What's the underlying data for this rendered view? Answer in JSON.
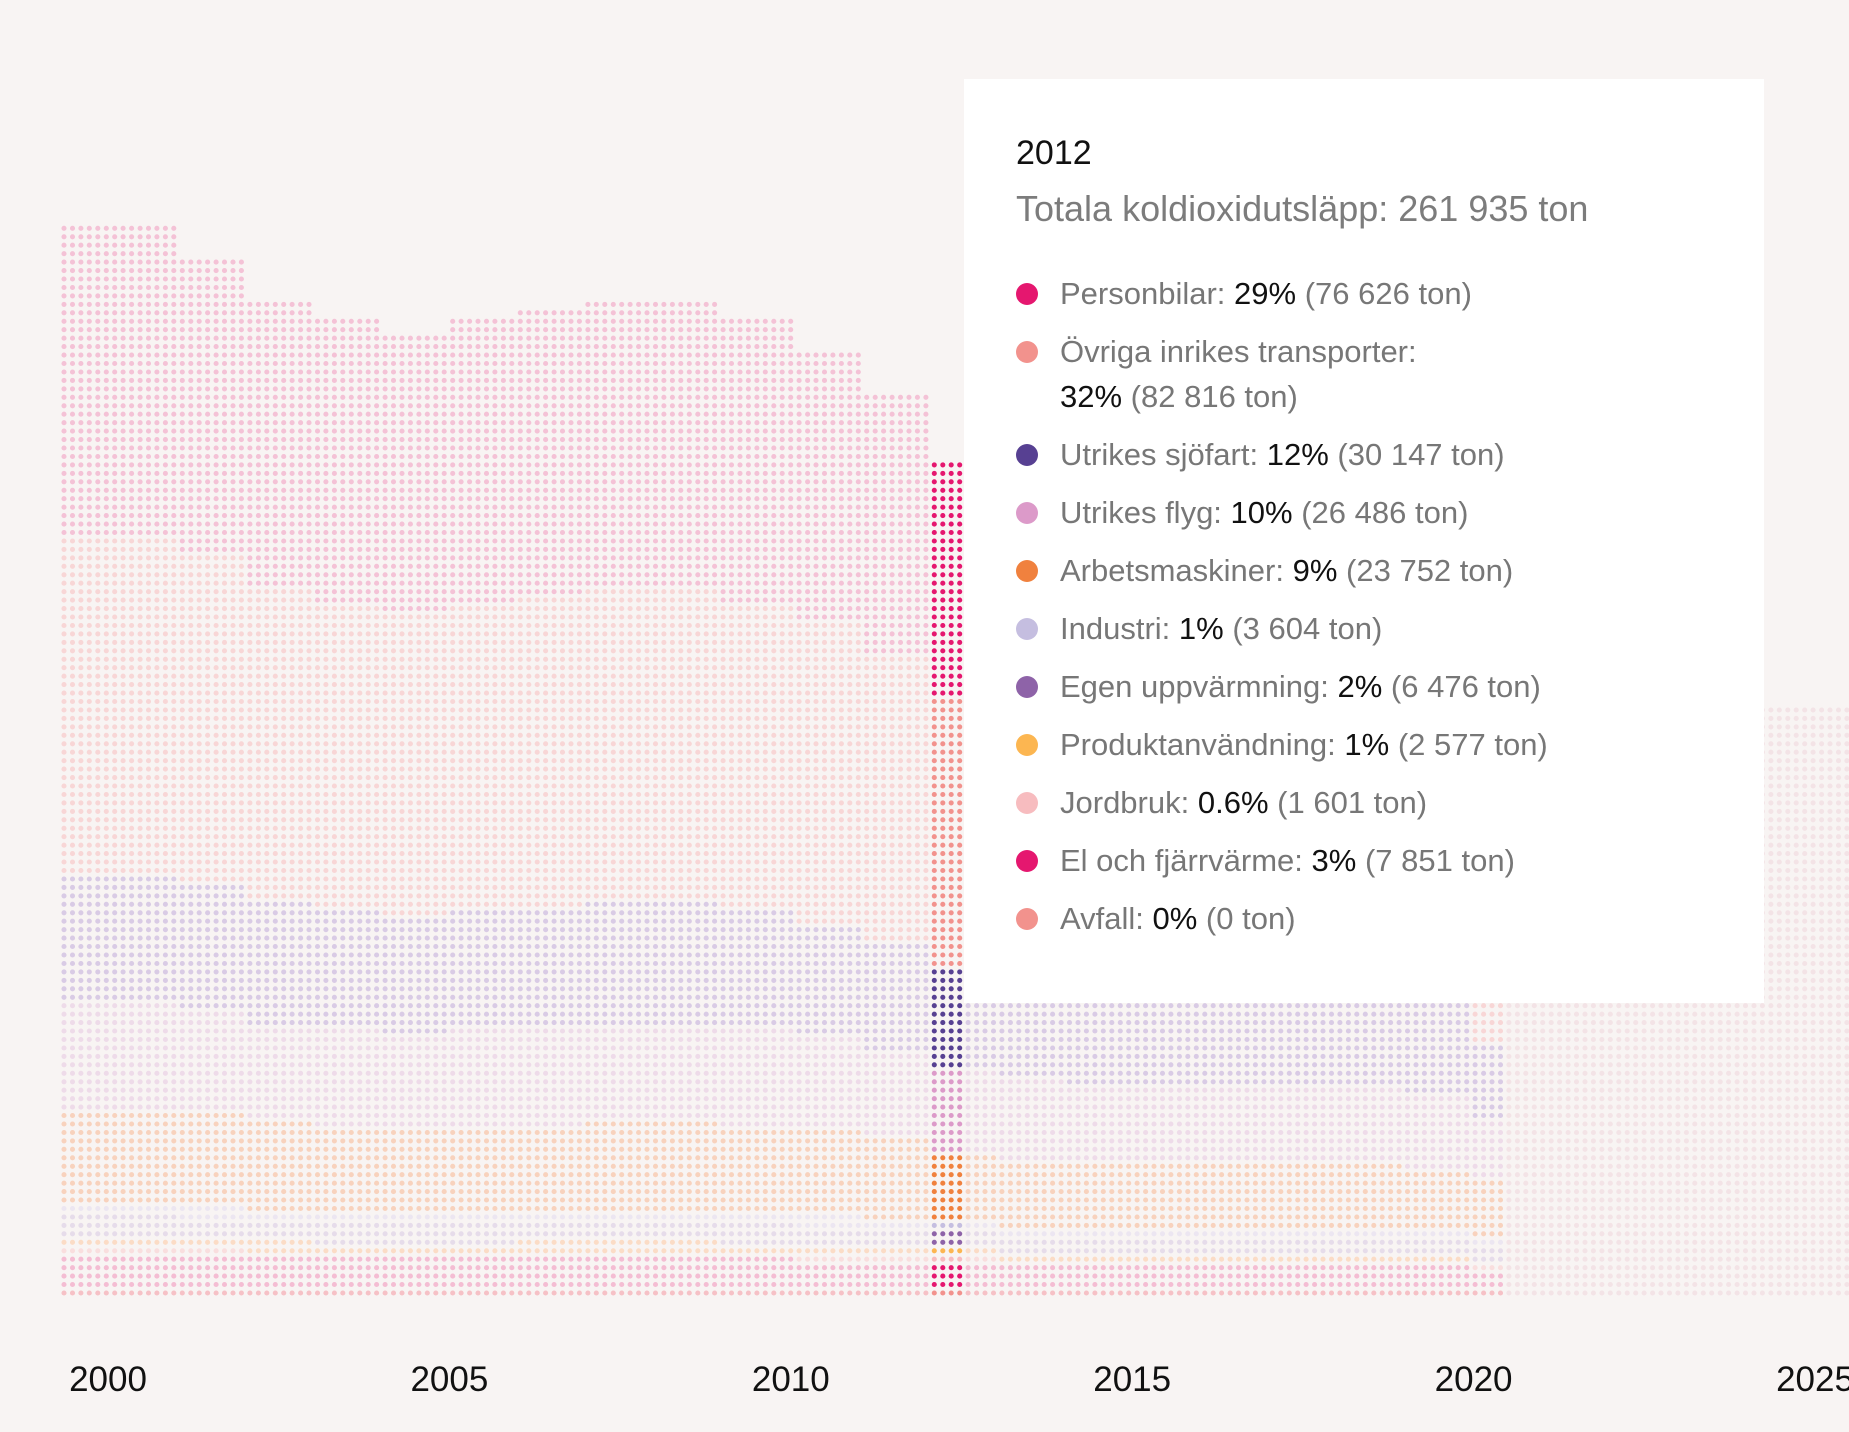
{
  "chart_data": {
    "type": "area",
    "style": "dot-matrix stacked area",
    "x_ticks": [
      "2000",
      "2005",
      "2010",
      "2015",
      "2020",
      "2025"
    ],
    "x_range": [
      2000,
      2025
    ],
    "years": [
      2000,
      2001,
      2002,
      2003,
      2004,
      2005,
      2006,
      2007,
      2008,
      2009,
      2010,
      2011,
      2012,
      2013,
      2014,
      2015,
      2016,
      2017,
      2018,
      2019,
      2020
    ],
    "highlight_year": 2012,
    "series_order": [
      "Avfall",
      "El och fjärrvärme",
      "Jordbruk",
      "Produktanvändning",
      "Egen uppvärmning",
      "Industri",
      "Arbetsmaskiner",
      "Utrikes flyg",
      "Utrikes sjöfart",
      "Övriga inrikes transporter",
      "Personbilar"
    ],
    "totals_relative": [
      1.0,
      0.97,
      0.93,
      0.91,
      0.9,
      0.91,
      0.92,
      0.93,
      0.93,
      0.91,
      0.88,
      0.84,
      0.78,
      0.73,
      0.72,
      0.72,
      0.72,
      0.71,
      0.7,
      0.69,
      0.6
    ],
    "series": [
      {
        "name": "Personbilar",
        "color": "#e5176f",
        "share_2012": 29,
        "value_2012": 76626
      },
      {
        "name": "Övriga inrikes transporter",
        "color": "#f2928d",
        "share_2012": 32,
        "value_2012": 82816
      },
      {
        "name": "Utrikes sjöfart",
        "color": "#574092",
        "share_2012": 12,
        "value_2012": 30147
      },
      {
        "name": "Utrikes flyg",
        "color": "#dc9ac9",
        "share_2012": 10,
        "value_2012": 26486
      },
      {
        "name": "Arbetsmaskiner",
        "color": "#f0813e",
        "share_2012": 9,
        "value_2012": 23752
      },
      {
        "name": "Industri",
        "color": "#c5bee0",
        "share_2012": 1,
        "value_2012": 3604
      },
      {
        "name": "Egen uppvärmning",
        "color": "#8e63a8",
        "share_2012": 2,
        "value_2012": 6476
      },
      {
        "name": "Produktanvändning",
        "color": "#fcb651",
        "share_2012": 1,
        "value_2012": 2577
      },
      {
        "name": "Jordbruk",
        "color": "#f7bcbf",
        "share_2012": 0.6,
        "value_2012": 1601
      },
      {
        "name": "El och fjärrvärme",
        "color": "#e5176f",
        "share_2012": 3,
        "value_2012": 7851
      },
      {
        "name": "Avfall",
        "color": "#f2928d",
        "share_2012": 0,
        "value_2012": 0
      }
    ]
  },
  "tooltip": {
    "year": "2012",
    "total_label": "Totala koldioxidutsläpp:",
    "total_value": "261 935 ton",
    "items": [
      {
        "label": "Personbilar:",
        "pct": "29%",
        "amount": "(76 626 ton)",
        "color": "#e5176f"
      },
      {
        "label": "Övriga inrikes transporter:",
        "pct": "32%",
        "amount": "(82 816 ton)",
        "color": "#f2928d"
      },
      {
        "label": "Utrikes sjöfart:",
        "pct": "12%",
        "amount": "(30 147 ton)",
        "color": "#574092"
      },
      {
        "label": "Utrikes flyg:",
        "pct": "10%",
        "amount": "(26 486 ton)",
        "color": "#dc9ac9"
      },
      {
        "label": "Arbetsmaskiner:",
        "pct": "9%",
        "amount": "(23 752 ton)",
        "color": "#f0813e"
      },
      {
        "label": "Industri:",
        "pct": "1%",
        "amount": "(3 604 ton)",
        "color": "#c5bee0"
      },
      {
        "label": "Egen uppvärmning:",
        "pct": "2%",
        "amount": "(6 476 ton)",
        "color": "#8e63a8"
      },
      {
        "label": "Produktanvändning:",
        "pct": "1%",
        "amount": "(2 577 ton)",
        "color": "#fcb651"
      },
      {
        "label": "Jordbruk:",
        "pct": "0.6%",
        "amount": "(1 601 ton)",
        "color": "#f7bcbf"
      },
      {
        "label": "El och fjärrvärme:",
        "pct": "3%",
        "amount": "(7 851 ton)",
        "color": "#e5176f"
      },
      {
        "label": "Avfall:",
        "pct": "0%",
        "amount": "(0 ton)",
        "color": "#f2928d"
      }
    ]
  }
}
